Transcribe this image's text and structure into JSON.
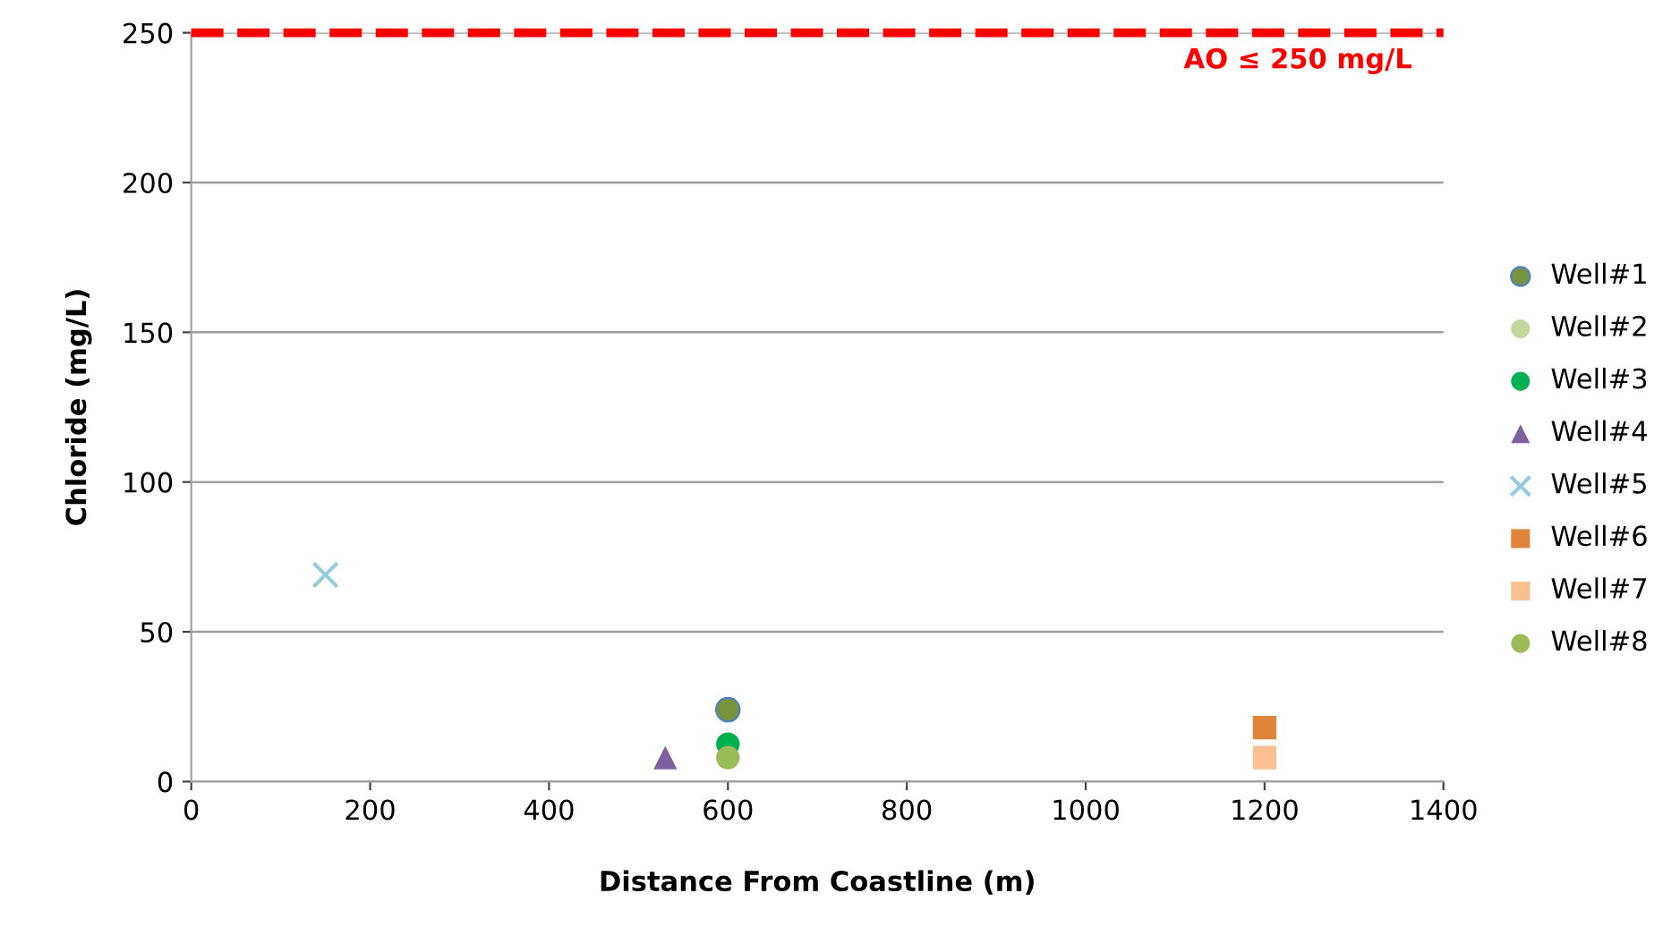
{
  "chart_data": {
    "type": "scatter",
    "xlabel": "Distance From Coastline (m)",
    "ylabel": "Chloride (mg/L)",
    "xlim": [
      0,
      1400
    ],
    "xticks": [
      0,
      200,
      400,
      600,
      800,
      1000,
      1200,
      1400
    ],
    "ylim": [
      0,
      250
    ],
    "yticks": [
      0,
      50,
      100,
      150,
      200,
      250
    ],
    "grid": "y",
    "legend": "right",
    "series": [
      {
        "name": "Well#1",
        "color": "#77933c",
        "marker": "circle",
        "x": [
          600
        ],
        "values": [
          24
        ]
      },
      {
        "name": "Well#2",
        "color": "#c3d69b",
        "marker": "circle",
        "x": [
          null
        ],
        "values": [
          null
        ]
      },
      {
        "name": "Well#3",
        "color": "#00b050",
        "marker": "circle",
        "x": [
          600
        ],
        "values": [
          12.5
        ]
      },
      {
        "name": "Well#4",
        "color": "#7f60a0",
        "marker": "triangle",
        "x": [
          530
        ],
        "values": [
          8
        ]
      },
      {
        "name": "Well#5",
        "color": "#93cddd",
        "marker": "cross",
        "x": [
          150
        ],
        "values": [
          69
        ]
      },
      {
        "name": "Well#6",
        "color": "#e0843c",
        "marker": "square",
        "x": [
          1200
        ],
        "values": [
          18
        ]
      },
      {
        "name": "Well#7",
        "color": "#fac090",
        "marker": "square",
        "x": [
          1200
        ],
        "values": [
          8
        ]
      },
      {
        "name": "Well#8",
        "color": "#9bbb59",
        "marker": "circle",
        "x": [
          600
        ],
        "values": [
          8
        ]
      }
    ],
    "ref_lines": [
      {
        "axis": "y",
        "value": 250,
        "label": "AO ≤ 250 mg/L",
        "color": "#ff0000",
        "line_style": "dashed"
      }
    ]
  }
}
